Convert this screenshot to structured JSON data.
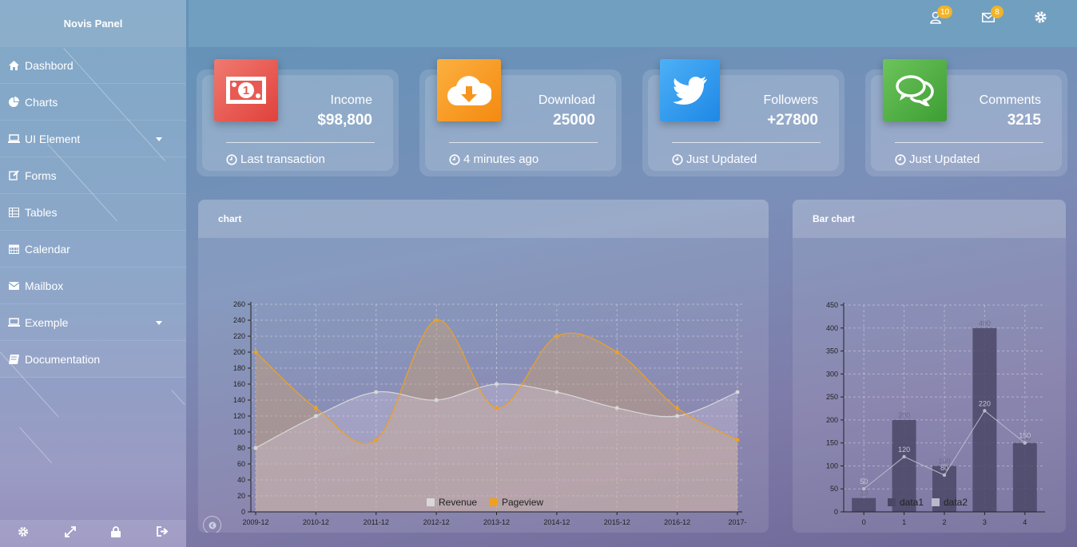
{
  "brand": "Novis Panel",
  "sidebar": {
    "items": [
      {
        "label": "Dashbord",
        "icon": "home-icon"
      },
      {
        "label": "Charts",
        "icon": "pie-chart-icon"
      },
      {
        "label": "UI Element",
        "icon": "laptop-icon",
        "has_caret": true
      },
      {
        "label": "Forms",
        "icon": "edit-icon"
      },
      {
        "label": "Tables",
        "icon": "table-icon"
      },
      {
        "label": "Calendar",
        "icon": "calendar-icon"
      },
      {
        "label": "Mailbox",
        "icon": "envelope-icon"
      },
      {
        "label": "Exemple",
        "icon": "laptop-icon",
        "has_caret": true
      },
      {
        "label": "Documentation",
        "icon": "book-icon"
      }
    ],
    "footer_icons": [
      "gear-icon",
      "expand-icon",
      "lock-icon",
      "sign-out-icon"
    ]
  },
  "topbar": {
    "user_badge": "10",
    "mail_badge": "8"
  },
  "stats": [
    {
      "label": "Income",
      "value": "$98,800",
      "footer": "Last transaction",
      "icon": "money-icon",
      "color": "#e8514d"
    },
    {
      "label": "Download",
      "value": "25000",
      "footer": "4 minutes ago",
      "icon": "cloud-download-icon",
      "color": "#f79a1e"
    },
    {
      "label": "Followers",
      "value": "+27800",
      "footer": "Just Updated",
      "icon": "twitter-icon",
      "color": "#2e9cf0"
    },
    {
      "label": "Comments",
      "value": "3215",
      "footer": "Just Updated",
      "icon": "comments-icon",
      "color": "#55b04a"
    }
  ],
  "panels": {
    "line_title": "chart",
    "bar_title": "Bar chart"
  },
  "chart_data": [
    {
      "type": "area",
      "x": [
        "2009-12",
        "2010-12",
        "2011-12",
        "2012-12",
        "2013-12",
        "2014-12",
        "2015-12",
        "2016-12",
        "2017-"
      ],
      "series": [
        {
          "name": "Revenue",
          "values": [
            80,
            120,
            150,
            140,
            160,
            150,
            130,
            120,
            150
          ],
          "color": "#d8d8d8"
        },
        {
          "name": "Pageview",
          "values": [
            200,
            130,
            90,
            240,
            130,
            220,
            200,
            130,
            90
          ],
          "color": "#f0a020"
        }
      ],
      "yticks": [
        0,
        20,
        40,
        60,
        80,
        100,
        120,
        140,
        160,
        180,
        200,
        220,
        240,
        260
      ],
      "ylim": [
        0,
        260
      ],
      "grid": true,
      "legend": "bottom"
    },
    {
      "type": "bar",
      "categories": [
        "0",
        "1",
        "2",
        "3",
        "4"
      ],
      "series": [
        {
          "name": "data1",
          "values": [
            30,
            200,
            100,
            400,
            150
          ],
          "color": "#4a4766"
        },
        {
          "name": "data2",
          "values": [
            50,
            120,
            80,
            220,
            150
          ],
          "color": "#bbb8cc"
        }
      ],
      "bar_labels": [
        "30",
        "200",
        "100",
        "400",
        "150"
      ],
      "line_labels": [
        "50",
        "120",
        "80",
        "220",
        "150"
      ],
      "yticks": [
        0,
        50,
        100,
        150,
        200,
        250,
        300,
        350,
        400,
        450
      ],
      "ylim": [
        0,
        450
      ],
      "grid": true,
      "legend": "bottom"
    }
  ]
}
